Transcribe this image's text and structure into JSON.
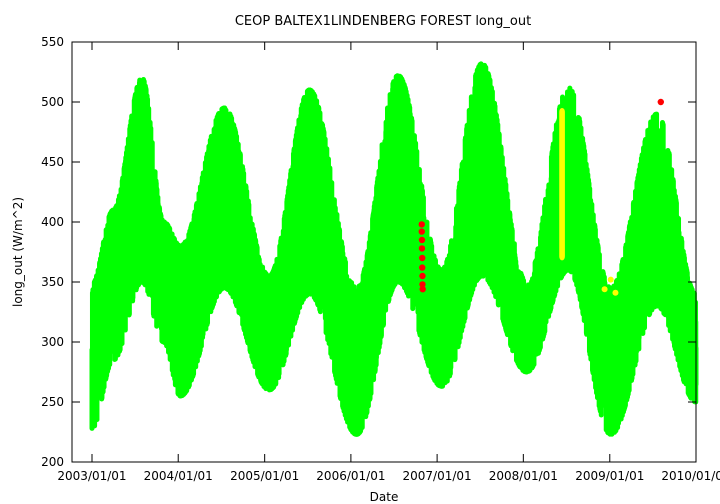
{
  "chart_data": {
    "type": "scatter",
    "title": "CEOP BALTEX1LINDENBERG FOREST  long_out",
    "xlabel": "Date",
    "ylabel": "long_out (W/m^2)",
    "xlim": [
      "2003/01/01",
      "2010/01/01"
    ],
    "ylim": [
      200,
      550
    ],
    "x_ticks": [
      "2003/01/01",
      "2004/01/01",
      "2005/01/01",
      "2006/01/01",
      "2007/01/01",
      "2008/01/01",
      "2009/01/01",
      "2010/01/01"
    ],
    "y_ticks": [
      200,
      250,
      300,
      350,
      400,
      450,
      500,
      550
    ],
    "grid": false,
    "legend": "none",
    "series": [
      {
        "color": "#00ff00",
        "seasonal_envelope": [
          {
            "x": "2003/01/01",
            "low": 228,
            "high": 348
          },
          {
            "x": "2003/04/01",
            "low": 285,
            "high": 410
          },
          {
            "x": "2003/08/01",
            "low": 350,
            "high": 520
          },
          {
            "x": "2003/11/01",
            "low": 300,
            "high": 400
          },
          {
            "x": "2004/01/10",
            "low": 255,
            "high": 380
          },
          {
            "x": "2004/07/15",
            "low": 345,
            "high": 495
          },
          {
            "x": "2005/01/20",
            "low": 260,
            "high": 355
          },
          {
            "x": "2005/07/10",
            "low": 340,
            "high": 510
          },
          {
            "x": "2006/01/25",
            "low": 223,
            "high": 345
          },
          {
            "x": "2006/07/20",
            "low": 350,
            "high": 522
          },
          {
            "x": "2007/01/20",
            "low": 263,
            "high": 360
          },
          {
            "x": "2007/07/10",
            "low": 355,
            "high": 532
          },
          {
            "x": "2008/01/15",
            "low": 275,
            "high": 350
          },
          {
            "x": "2008/07/10",
            "low": 360,
            "high": 512
          },
          {
            "x": "2009/01/05",
            "low": 223,
            "high": 345
          },
          {
            "x": "2009/07/20",
            "low": 330,
            "high": 490
          },
          {
            "x": "2010/01/01",
            "low": 250,
            "high": 340
          }
        ]
      },
      {
        "color": "#ff0000",
        "points": [
          {
            "x": "2006/10/28",
            "y": 398
          },
          {
            "x": "2006/10/28",
            "y": 392
          },
          {
            "x": "2006/10/29",
            "y": 385
          },
          {
            "x": "2006/10/29",
            "y": 378
          },
          {
            "x": "2006/10/30",
            "y": 370
          },
          {
            "x": "2006/10/30",
            "y": 362
          },
          {
            "x": "2006/10/31",
            "y": 355
          },
          {
            "x": "2006/10/31",
            "y": 348
          },
          {
            "x": "2006/11/01",
            "y": 344
          },
          {
            "x": "2009/08/05",
            "y": 500
          }
        ]
      },
      {
        "color": "#ffff00",
        "band": {
          "x_start": "2008/06/01",
          "x_end": "2008/06/25",
          "low": 368,
          "high": 495
        },
        "points": [
          {
            "x": "2008/12/10",
            "y": 344
          },
          {
            "x": "2009/01/05",
            "y": 352
          },
          {
            "x": "2009/01/25",
            "y": 341
          }
        ]
      }
    ]
  }
}
